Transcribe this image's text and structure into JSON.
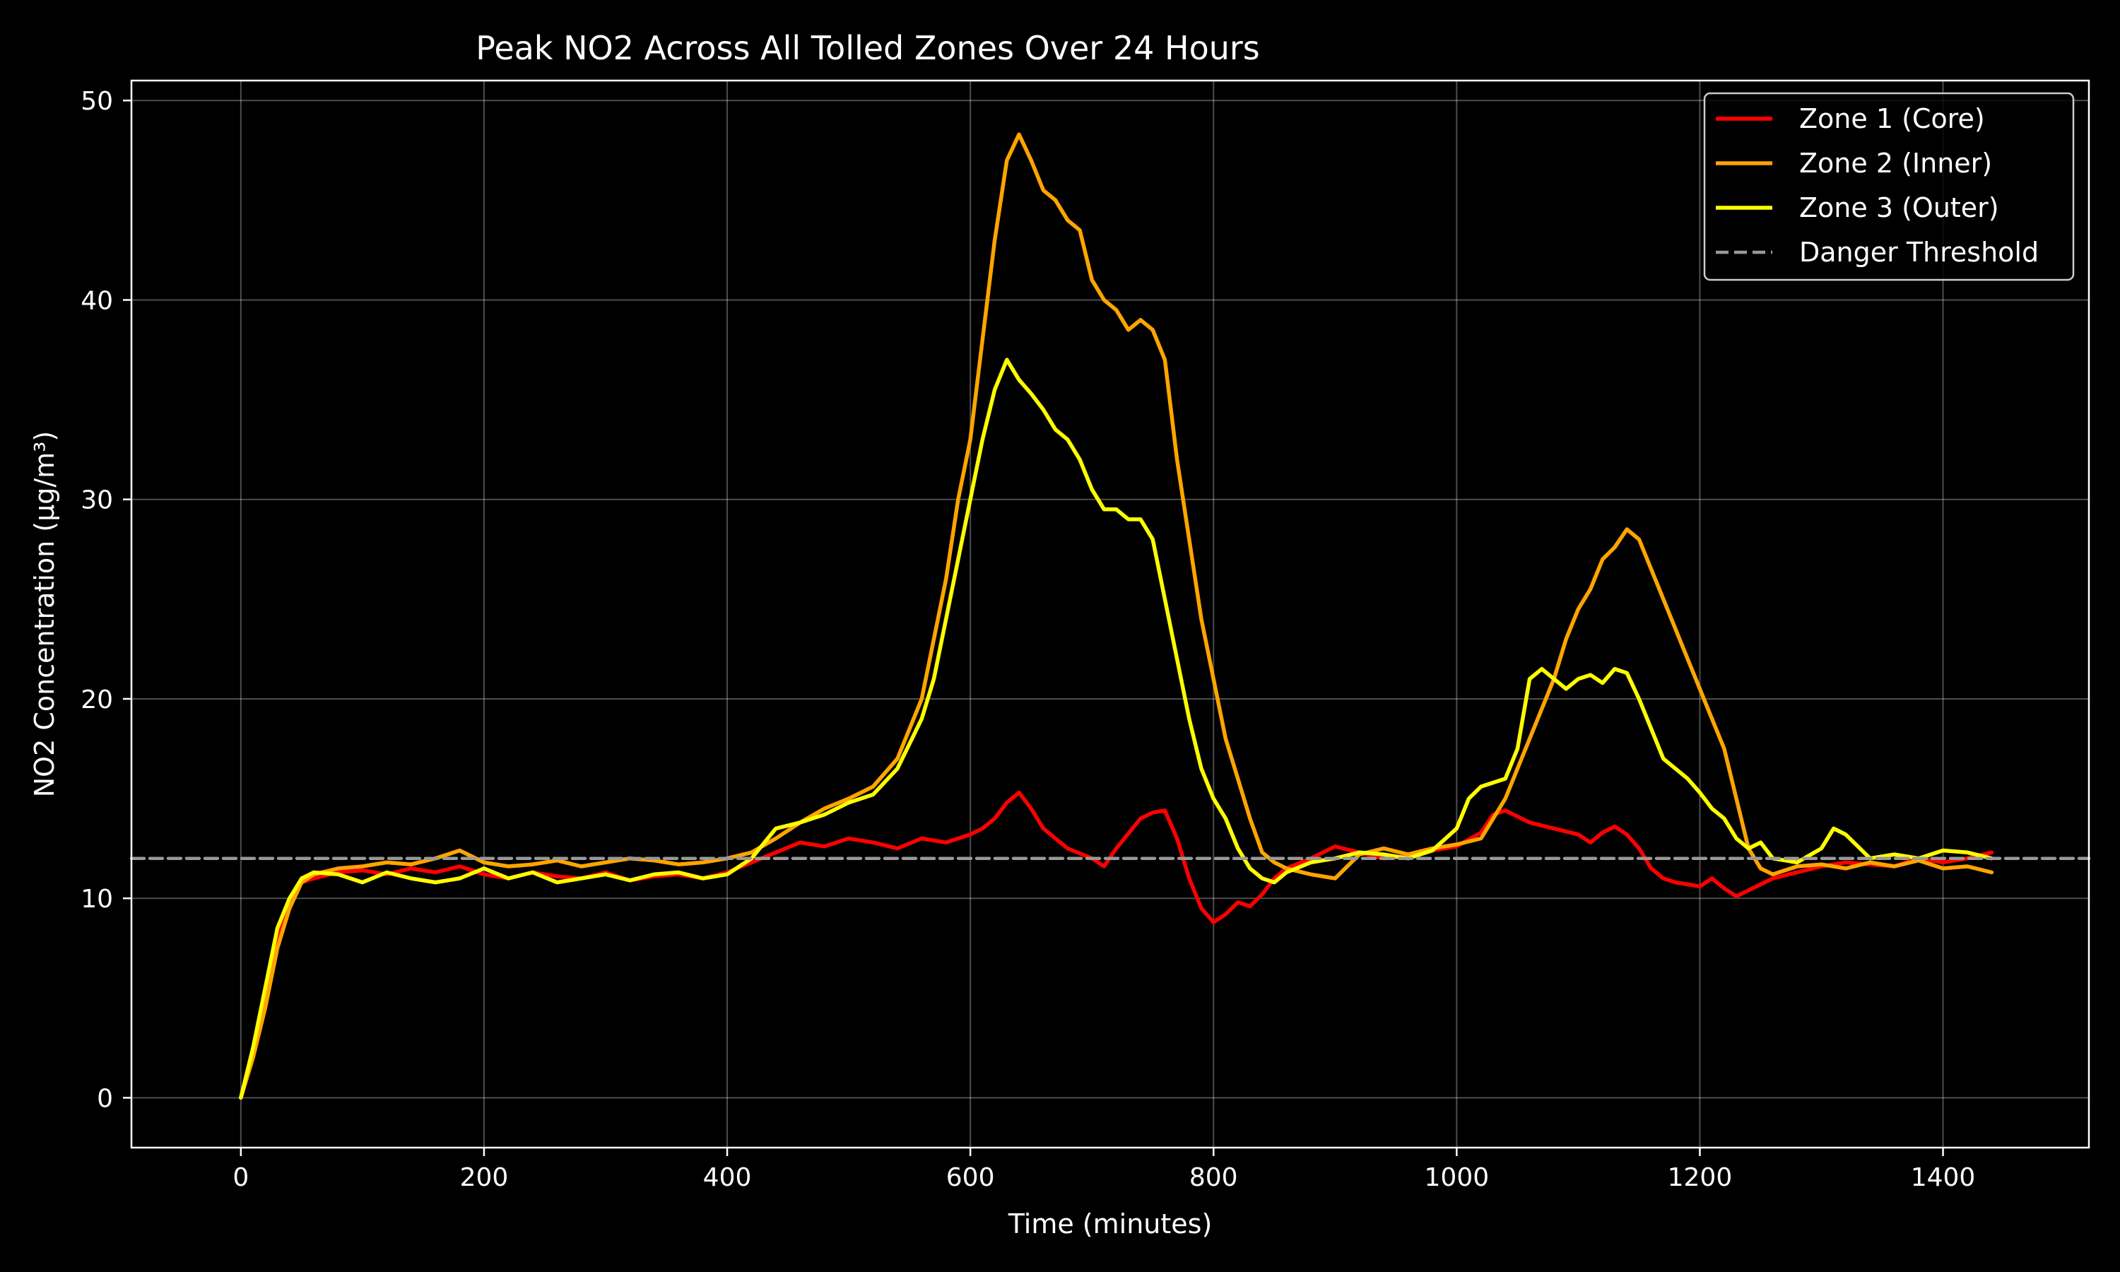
{
  "chart_data": {
    "type": "line",
    "title": "Peak NO2 Across All Tolled Zones Over 24 Hours",
    "xlabel": "Time (minutes)",
    "ylabel": "NO2 Concentration (μg/m³)",
    "xlim": [
      -90,
      1520
    ],
    "ylim": [
      -2.5,
      51
    ],
    "xticks": [
      0,
      200,
      400,
      600,
      800,
      1000,
      1200,
      1400
    ],
    "yticks": [
      0,
      10,
      20,
      30,
      40,
      50
    ],
    "grid": true,
    "legend_position": "top-right",
    "background": "#000000",
    "series": [
      {
        "name": "Zone 1 (Core)",
        "color": "#ff0000",
        "x": [
          0,
          10,
          20,
          30,
          40,
          50,
          60,
          80,
          100,
          120,
          140,
          160,
          180,
          200,
          220,
          240,
          260,
          280,
          300,
          320,
          340,
          360,
          380,
          400,
          420,
          440,
          460,
          480,
          500,
          520,
          540,
          560,
          580,
          600,
          610,
          620,
          630,
          640,
          650,
          660,
          680,
          700,
          710,
          720,
          740,
          750,
          760,
          770,
          780,
          790,
          800,
          810,
          820,
          830,
          840,
          850,
          860,
          880,
          900,
          920,
          940,
          960,
          980,
          1000,
          1020,
          1030,
          1040,
          1060,
          1080,
          1100,
          1110,
          1120,
          1130,
          1140,
          1150,
          1160,
          1170,
          1180,
          1200,
          1210,
          1220,
          1230,
          1240,
          1260,
          1280,
          1300,
          1320,
          1340,
          1360,
          1380,
          1400,
          1420,
          1440
        ],
        "values": [
          0,
          2,
          5,
          8,
          10,
          10.8,
          11,
          11.3,
          11.4,
          11.2,
          11.5,
          11.3,
          11.6,
          11.2,
          11.0,
          11.3,
          11.1,
          11.0,
          11.3,
          10.9,
          11.1,
          11.2,
          11.0,
          11.3,
          11.8,
          12.3,
          12.8,
          12.6,
          13.0,
          12.8,
          12.5,
          13.0,
          12.8,
          13.2,
          13.5,
          14.0,
          14.8,
          15.3,
          14.5,
          13.5,
          12.5,
          12.0,
          11.6,
          12.5,
          14.0,
          14.3,
          14.4,
          13.0,
          11.0,
          9.5,
          8.8,
          9.2,
          9.8,
          9.6,
          10.2,
          11.0,
          11.5,
          12.0,
          12.6,
          12.3,
          12.0,
          12.1,
          12.4,
          12.6,
          13.3,
          14.2,
          14.4,
          13.8,
          13.5,
          13.2,
          12.8,
          13.3,
          13.6,
          13.2,
          12.5,
          11.5,
          11.0,
          10.8,
          10.6,
          11.0,
          10.5,
          10.1,
          10.4,
          11.0,
          11.3,
          11.6,
          11.8,
          11.7,
          11.6,
          12.0,
          11.8,
          12.0,
          12.3
        ]
      },
      {
        "name": "Zone 2 (Inner)",
        "color": "#ffa500",
        "x": [
          0,
          10,
          20,
          30,
          40,
          50,
          60,
          80,
          100,
          120,
          140,
          160,
          180,
          200,
          220,
          240,
          260,
          280,
          300,
          320,
          340,
          360,
          380,
          400,
          420,
          440,
          460,
          480,
          500,
          520,
          540,
          560,
          570,
          580,
          590,
          600,
          610,
          620,
          630,
          640,
          650,
          660,
          670,
          680,
          690,
          700,
          710,
          720,
          730,
          740,
          750,
          760,
          770,
          780,
          790,
          800,
          810,
          820,
          830,
          840,
          850,
          860,
          880,
          900,
          920,
          940,
          960,
          980,
          1000,
          1020,
          1040,
          1050,
          1060,
          1070,
          1080,
          1090,
          1100,
          1110,
          1120,
          1130,
          1140,
          1150,
          1160,
          1170,
          1180,
          1190,
          1200,
          1210,
          1220,
          1230,
          1240,
          1250,
          1260,
          1280,
          1300,
          1320,
          1340,
          1360,
          1380,
          1400,
          1420,
          1440
        ],
        "values": [
          0,
          2,
          4.5,
          7.5,
          9.5,
          10.8,
          11.2,
          11.5,
          11.6,
          11.8,
          11.7,
          12.0,
          12.4,
          11.8,
          11.6,
          11.7,
          11.9,
          11.6,
          11.8,
          12.0,
          11.9,
          11.7,
          11.8,
          12.0,
          12.3,
          13.0,
          13.8,
          14.5,
          15.0,
          15.6,
          17.0,
          20.0,
          23.0,
          26.0,
          30.0,
          33.0,
          38.0,
          43.0,
          47.0,
          48.3,
          47.0,
          45.5,
          45.0,
          44.0,
          43.5,
          41.0,
          40.0,
          39.5,
          38.5,
          39.0,
          38.5,
          37.0,
          32.0,
          28.0,
          24.0,
          21.0,
          18.0,
          16.0,
          14.0,
          12.3,
          11.8,
          11.5,
          11.2,
          11.0,
          12.2,
          12.5,
          12.2,
          12.5,
          12.7,
          13.0,
          15.0,
          16.5,
          18.0,
          19.5,
          21.0,
          23.0,
          24.5,
          25.5,
          27.0,
          27.6,
          28.5,
          28.0,
          26.5,
          25.0,
          23.5,
          22.0,
          20.5,
          19.0,
          17.5,
          15.0,
          12.5,
          11.5,
          11.2,
          11.6,
          11.7,
          11.5,
          11.8,
          11.6,
          11.9,
          11.5,
          11.6,
          11.3
        ]
      },
      {
        "name": "Zone 3 (Outer)",
        "color": "#ffff00",
        "x": [
          0,
          10,
          20,
          30,
          40,
          50,
          60,
          80,
          100,
          120,
          140,
          160,
          180,
          200,
          220,
          240,
          260,
          280,
          300,
          320,
          340,
          360,
          380,
          400,
          420,
          440,
          460,
          480,
          500,
          520,
          540,
          560,
          570,
          580,
          590,
          600,
          610,
          620,
          630,
          640,
          650,
          660,
          670,
          680,
          690,
          700,
          710,
          720,
          730,
          740,
          750,
          760,
          770,
          780,
          790,
          800,
          810,
          820,
          830,
          840,
          850,
          860,
          880,
          900,
          920,
          940,
          960,
          980,
          1000,
          1010,
          1020,
          1030,
          1040,
          1050,
          1060,
          1070,
          1080,
          1090,
          1100,
          1110,
          1120,
          1130,
          1140,
          1150,
          1160,
          1170,
          1180,
          1190,
          1200,
          1210,
          1220,
          1230,
          1240,
          1250,
          1260,
          1280,
          1300,
          1310,
          1320,
          1340,
          1360,
          1380,
          1400,
          1420,
          1440
        ],
        "values": [
          0,
          2.5,
          5.5,
          8.5,
          10,
          11.0,
          11.3,
          11.2,
          10.8,
          11.3,
          11.0,
          10.8,
          11.0,
          11.5,
          11.0,
          11.3,
          10.8,
          11.0,
          11.2,
          10.9,
          11.2,
          11.3,
          11.0,
          11.2,
          12.0,
          13.5,
          13.8,
          14.2,
          14.8,
          15.2,
          16.5,
          19.0,
          21.0,
          24.0,
          27.0,
          30.0,
          33.0,
          35.5,
          37.0,
          36.0,
          35.3,
          34.5,
          33.5,
          33.0,
          32.0,
          30.5,
          29.5,
          29.5,
          29.0,
          29.0,
          28.0,
          25.0,
          22.0,
          19.0,
          16.5,
          15.0,
          14.0,
          12.5,
          11.5,
          11.0,
          10.8,
          11.3,
          11.8,
          12.0,
          12.3,
          12.2,
          12.0,
          12.4,
          13.5,
          15.0,
          15.6,
          15.8,
          16.0,
          17.5,
          21.0,
          21.5,
          21.0,
          20.5,
          21.0,
          21.2,
          20.8,
          21.5,
          21.3,
          20.0,
          18.5,
          17.0,
          16.5,
          16.0,
          15.3,
          14.5,
          14.0,
          13.0,
          12.5,
          12.8,
          12.0,
          11.8,
          12.5,
          13.5,
          13.2,
          12.0,
          12.2,
          12.0,
          12.4,
          12.3,
          12.0
        ]
      },
      {
        "name": "Danger Threshold",
        "color": "#999999",
        "dashed": true,
        "x": [
          -90,
          1520
        ],
        "values": [
          12,
          12
        ]
      }
    ]
  }
}
